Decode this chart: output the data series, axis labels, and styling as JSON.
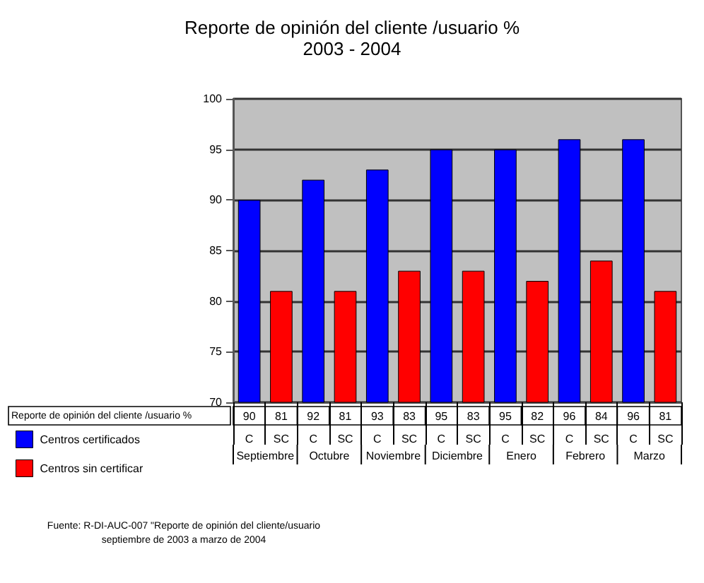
{
  "chart_data": {
    "type": "bar",
    "title": "Reporte de opinión del cliente /usuario %",
    "subtitle": "2003 - 2004",
    "categories": [
      "C",
      "SC",
      "C",
      "SC",
      "C",
      "SC",
      "C",
      "SC",
      "C",
      "SC",
      "C",
      "SC",
      "C",
      "SC"
    ],
    "series": [
      {
        "name": "Centros certificados",
        "color": "#0000ff",
        "values": [
          90,
          null,
          92,
          null,
          93,
          null,
          95,
          null,
          95,
          null,
          96,
          null,
          96,
          null
        ]
      },
      {
        "name": "Centros sin certificar",
        "color": "#ff0000",
        "values": [
          null,
          81,
          null,
          81,
          null,
          83,
          null,
          83,
          null,
          82,
          null,
          84,
          null,
          81
        ]
      }
    ],
    "stacked": true,
    "ylim": [
      70,
      100
    ],
    "yticks": [
      70,
      75,
      80,
      85,
      90,
      95,
      100
    ],
    "grid": "y",
    "legend": "bottom left",
    "data_labels": true,
    "annotations": [
      "Reporte de opinión del cliente /usuario %",
      "Septiembre",
      "Octubre",
      "Noviembre",
      "Diciembre",
      "Enero",
      "Febrero",
      "Marzo",
      "Fuente: R-DI-AUC-007 \"Reporte de opinión del cliente/usuario\nseptiembre de 2003 a marzo de 2004"
    ]
  }
}
